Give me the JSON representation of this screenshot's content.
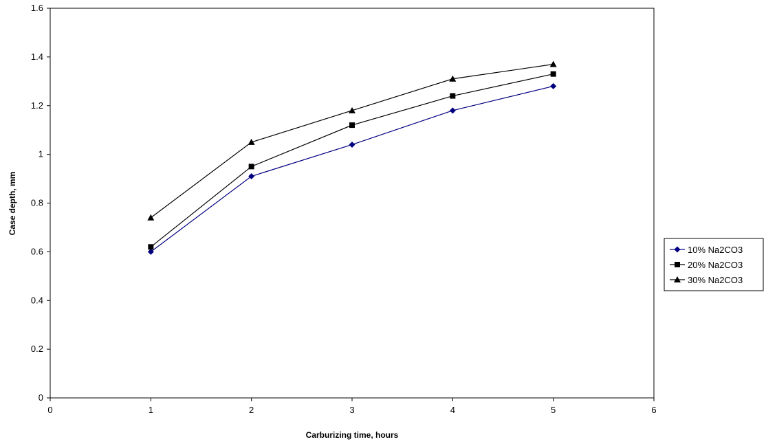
{
  "chart_data": {
    "type": "line",
    "xlabel": "Carburizing time, hours",
    "ylabel": "Case depth, mm",
    "xlim": [
      0,
      6
    ],
    "ylim": [
      0,
      1.6
    ],
    "xticks": [
      "0",
      "1",
      "2",
      "3",
      "4",
      "5",
      "6"
    ],
    "yticks": [
      "0",
      "0.2",
      "0.4",
      "0.6",
      "0.8",
      "1",
      "1.2",
      "1.4",
      "1.6"
    ],
    "grid": false,
    "legend_position": "right",
    "x": [
      1,
      2,
      3,
      4,
      5
    ],
    "series": [
      {
        "name": "10% Na2CO3",
        "values": [
          0.6,
          0.91,
          1.04,
          1.18,
          1.28
        ],
        "color": "#000080",
        "marker": "diamond"
      },
      {
        "name": "20% Na2CO3",
        "values": [
          0.62,
          0.95,
          1.12,
          1.24,
          1.33
        ],
        "color": "#000000",
        "marker": "square"
      },
      {
        "name": "30% Na2CO3",
        "values": [
          0.74,
          1.05,
          1.18,
          1.31,
          1.37
        ],
        "color": "#000000",
        "marker": "triangle"
      }
    ]
  }
}
